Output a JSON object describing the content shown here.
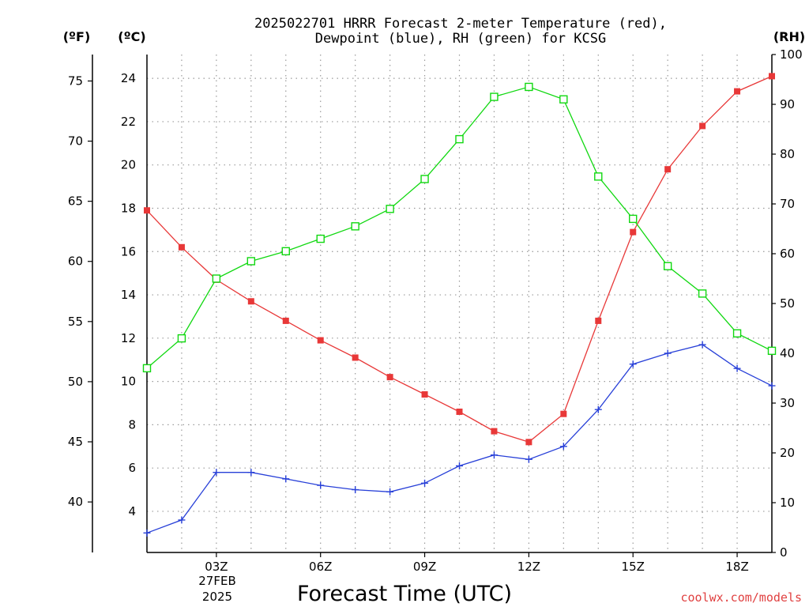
{
  "chart_data": {
    "type": "line",
    "title_line1": "2025022701 HRRR Forecast 2-meter Temperature (red),",
    "title_line2": "Dewpoint (blue), RH (green) for KCSG",
    "unit_f": "(ºF)",
    "unit_c": "(ºC)",
    "unit_rh": "(RH)",
    "xlabel": "Forecast Time (UTC)",
    "date_line1": "27FEB",
    "date_line2": "2025",
    "credit": "coolwx.com/models",
    "x_hours": [
      1,
      2,
      3,
      4,
      5,
      6,
      7,
      8,
      9,
      10,
      11,
      12,
      13,
      14,
      15,
      16,
      17,
      18,
      19
    ],
    "x_ticks": [
      {
        "hour": 3,
        "label": "03Z"
      },
      {
        "hour": 6,
        "label": "06Z"
      },
      {
        "hour": 9,
        "label": "09Z"
      },
      {
        "hour": 12,
        "label": "12Z"
      },
      {
        "hour": 15,
        "label": "15Z"
      },
      {
        "hour": 18,
        "label": "18Z"
      }
    ],
    "xlim": [
      1,
      19
    ],
    "ylim_c": [
      2.1,
      25.1
    ],
    "ylim_rh": [
      0,
      100
    ],
    "ylim_f": [
      35.8,
      77.2
    ],
    "c_ticks": [
      4,
      6,
      8,
      10,
      12,
      14,
      16,
      18,
      20,
      22,
      24
    ],
    "f_ticks": [
      40,
      45,
      50,
      55,
      60,
      65,
      70,
      75
    ],
    "rh_ticks": [
      0,
      10,
      20,
      30,
      40,
      50,
      60,
      70,
      80,
      90,
      100
    ],
    "series": [
      {
        "name": "Temperature",
        "color": "#e83838",
        "marker": "filled-square",
        "axis": "c",
        "values": [
          17.9,
          16.2,
          14.7,
          13.7,
          12.8,
          11.9,
          11.1,
          10.2,
          9.4,
          8.6,
          7.7,
          7.2,
          8.5,
          12.8,
          16.9,
          19.8,
          21.8,
          23.4,
          24.1
        ]
      },
      {
        "name": "Dewpoint",
        "color": "#2840d8",
        "marker": "plus",
        "axis": "c",
        "values": [
          3.0,
          3.6,
          5.8,
          5.8,
          5.5,
          5.2,
          5.0,
          4.9,
          5.3,
          6.1,
          6.6,
          6.4,
          7.0,
          8.7,
          10.8,
          11.3,
          11.7,
          10.6,
          9.8
        ]
      },
      {
        "name": "RH",
        "color": "#10d810",
        "marker": "open-square",
        "axis": "rh",
        "values": [
          37,
          43,
          55,
          58.5,
          60.5,
          63,
          65.5,
          69,
          75,
          83,
          91.5,
          93.5,
          91,
          75.5,
          67,
          57.5,
          52,
          44,
          40.5
        ]
      }
    ]
  }
}
